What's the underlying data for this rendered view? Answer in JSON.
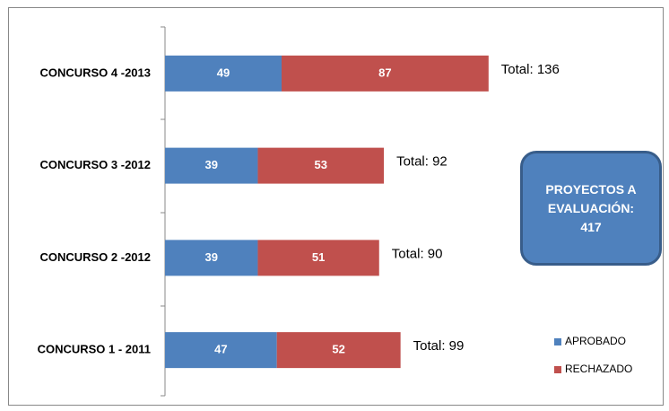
{
  "chart_data": {
    "type": "stacked-barh",
    "categories": [
      "CONCURSO 4 -2013",
      "CONCURSO 3 -2012",
      "CONCURSO 2 -2012",
      "CONCURSO 1 - 2011"
    ],
    "series": [
      {
        "name": "APROBADO",
        "color": "#4f81bd",
        "values": [
          49,
          39,
          39,
          47
        ]
      },
      {
        "name": "RECHAZADO",
        "color": "#c0504d",
        "values": [
          87,
          53,
          51,
          52
        ]
      }
    ],
    "total_labels": [
      "Total: 136",
      "Total: 92",
      "Total: 90",
      "Total: 99"
    ],
    "annotation": "PROYECTOS A EVALUACIÓN: 417",
    "legend": "right"
  }
}
